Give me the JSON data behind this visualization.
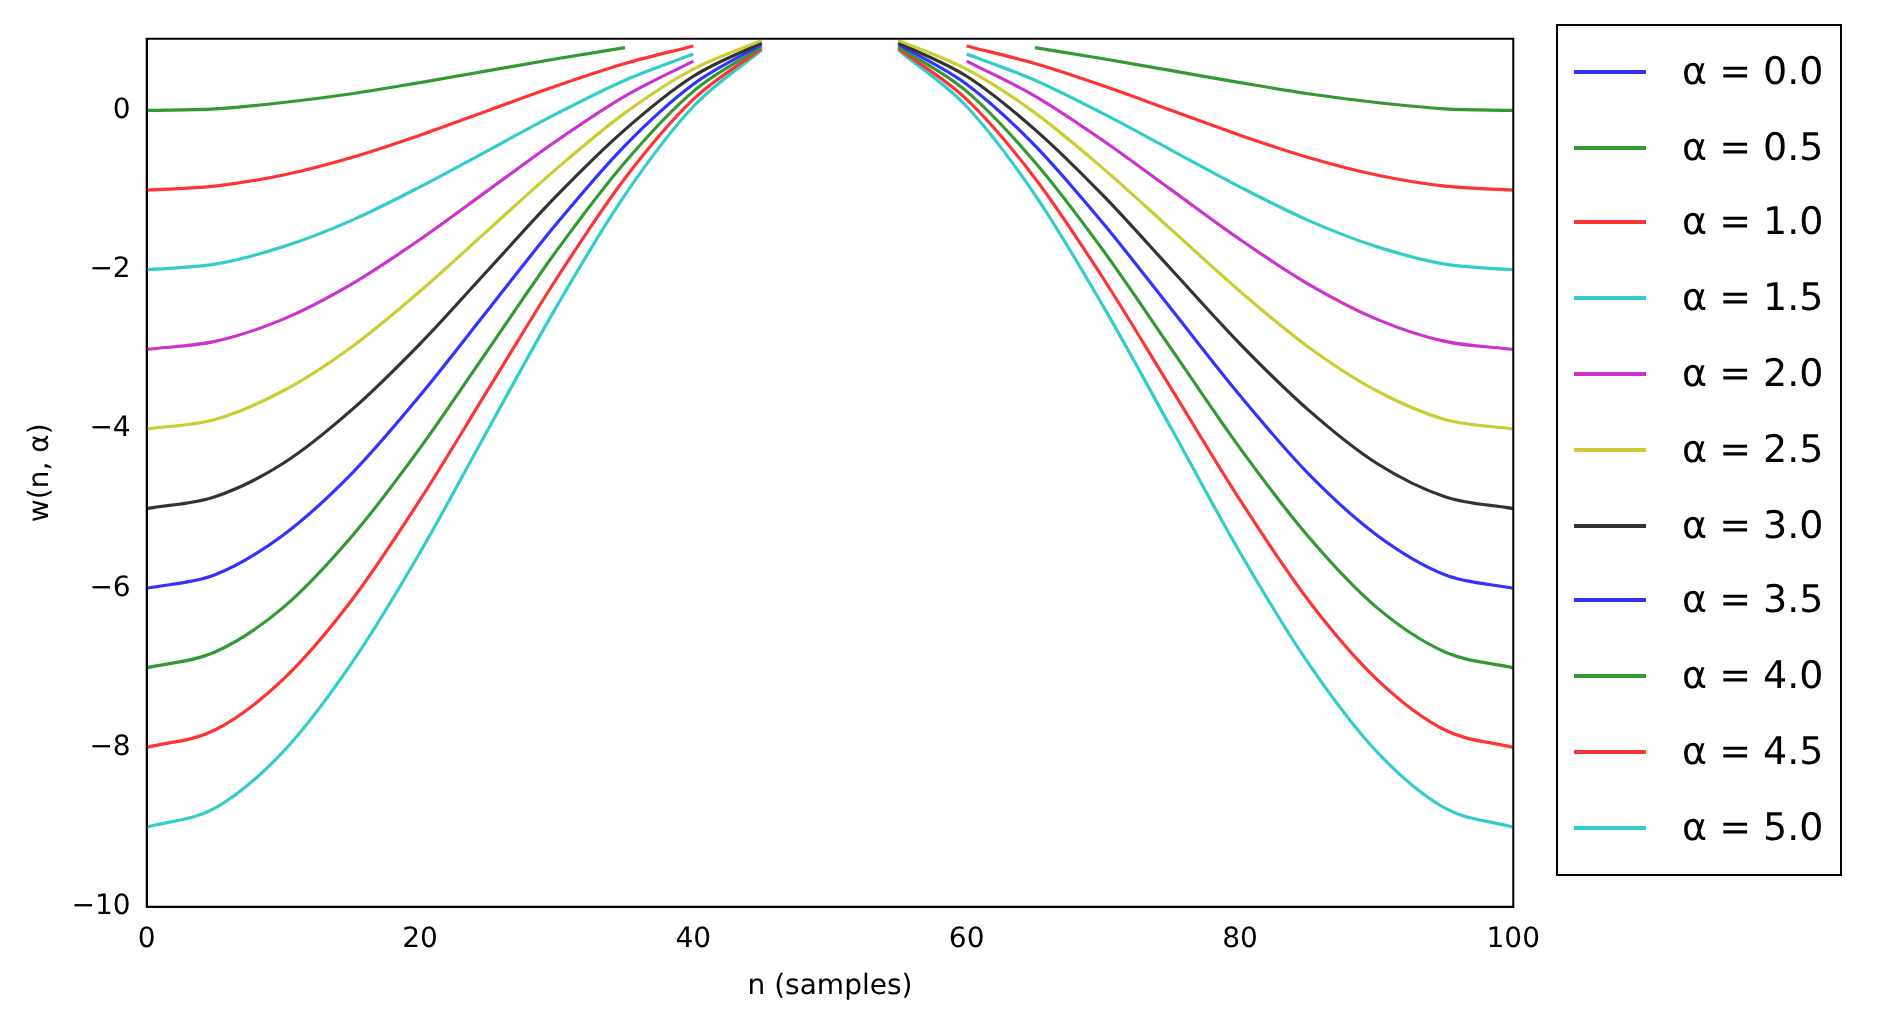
{
  "chart_data": {
    "type": "line",
    "xlabel": "n (samples)",
    "ylabel": "w(n, α)",
    "x": [
      0,
      5,
      10,
      15,
      20,
      25,
      30,
      35,
      40,
      45,
      50,
      55,
      60,
      65,
      70,
      75,
      80,
      85,
      90,
      95,
      100
    ],
    "xlim": [
      0,
      100
    ],
    "xticks": [
      0,
      20,
      40,
      60,
      80,
      100
    ],
    "ylim": [
      -10,
      0.9
    ],
    "yticks": [
      -10,
      -8,
      -6,
      -4,
      -2,
      0
    ],
    "grid": false,
    "legend": "right",
    "marker": "none",
    "line_style": "solid",
    "series": [
      {
        "name": "α = 0.0",
        "color": "#3333ff",
        "values": [
          null,
          null,
          null,
          null,
          null,
          null,
          null,
          null,
          null,
          null,
          null,
          null,
          null,
          null,
          null,
          null,
          null,
          null,
          null,
          null,
          null
        ]
      },
      {
        "name": "α = 0.5",
        "color": "#339933",
        "values": [
          0,
          0.02,
          0.1,
          0.21,
          0.35,
          0.5,
          0.65,
          0.79,
          null,
          null,
          null,
          null,
          null,
          0.79,
          0.65,
          0.5,
          0.35,
          0.21,
          0.1,
          0.02,
          0
        ]
      },
      {
        "name": "α = 1.0",
        "color": "#ff3333",
        "values": [
          -1,
          -0.95,
          -0.81,
          -0.59,
          -0.31,
          0,
          0.31,
          0.59,
          0.81,
          null,
          null,
          null,
          0.81,
          0.59,
          0.31,
          0,
          -0.31,
          -0.59,
          -0.81,
          -0.95,
          -1
        ]
      },
      {
        "name": "α = 1.5",
        "color": "#33cccc",
        "values": [
          -2,
          -1.93,
          -1.71,
          -1.38,
          -0.96,
          -0.5,
          -0.04,
          0.38,
          0.71,
          null,
          null,
          null,
          0.71,
          0.38,
          -0.04,
          -0.5,
          -0.96,
          -1.38,
          -1.71,
          -1.93,
          -2
        ]
      },
      {
        "name": "α = 2.0",
        "color": "#cc33cc",
        "values": [
          -3,
          -2.9,
          -2.62,
          -2.18,
          -1.62,
          -1,
          -0.38,
          0.18,
          0.62,
          null,
          null,
          null,
          0.62,
          0.18,
          -0.38,
          -1,
          -1.62,
          -2.18,
          -2.62,
          -2.9,
          -3
        ]
      },
      {
        "name": "α = 2.5",
        "color": "#cccc33",
        "values": [
          -4,
          -3.88,
          -3.52,
          -2.97,
          -2.27,
          -1.5,
          -0.73,
          -0.03,
          0.52,
          0.88,
          null,
          0.88,
          0.52,
          -0.03,
          -0.73,
          -1.5,
          -2.27,
          -2.97,
          -3.52,
          -3.88,
          -4
        ]
      },
      {
        "name": "α = 3.0",
        "color": "#333333",
        "values": [
          -5,
          -4.85,
          -4.43,
          -3.76,
          -2.93,
          -2,
          -1.07,
          -0.24,
          0.43,
          0.85,
          null,
          0.85,
          0.43,
          -0.24,
          -1.07,
          -2,
          -2.93,
          -3.76,
          -4.43,
          -4.85,
          -5
        ]
      },
      {
        "name": "α = 3.5",
        "color": "#3333ff",
        "values": [
          -6,
          -5.83,
          -5.33,
          -4.56,
          -3.58,
          -2.5,
          -1.42,
          -0.44,
          0.33,
          0.83,
          null,
          0.83,
          0.33,
          -0.44,
          -1.42,
          -2.5,
          -3.58,
          -4.56,
          -5.33,
          -5.83,
          -6
        ]
      },
      {
        "name": "α = 4.0",
        "color": "#339933",
        "values": [
          -7,
          -6.8,
          -6.24,
          -5.35,
          -4.24,
          -3,
          -1.76,
          -0.65,
          0.24,
          0.8,
          null,
          0.8,
          0.24,
          -0.65,
          -1.76,
          -3,
          -4.24,
          -5.35,
          -6.24,
          -6.8,
          -7
        ]
      },
      {
        "name": "α = 4.5",
        "color": "#ff3333",
        "values": [
          -8,
          -7.78,
          -7.14,
          -6.15,
          -4.89,
          -3.5,
          -2.11,
          -0.85,
          0.14,
          0.78,
          null,
          0.78,
          0.14,
          -0.85,
          -2.11,
          -3.5,
          -4.89,
          -6.15,
          -7.14,
          -7.78,
          -8
        ]
      },
      {
        "name": "α = 5.0",
        "color": "#33cccc",
        "values": [
          -9,
          -8.76,
          -8.05,
          -6.94,
          -5.55,
          -4,
          -2.46,
          -1.06,
          0.05,
          0.76,
          null,
          0.76,
          0.05,
          -1.06,
          -2.46,
          -4,
          -5.55,
          -6.94,
          -8.05,
          -8.76,
          -9
        ]
      }
    ]
  }
}
